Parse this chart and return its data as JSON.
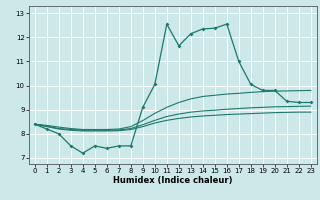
{
  "xlabel": "Humidex (Indice chaleur)",
  "bg_color": "#cce8e8",
  "grid_color": "#ffffff",
  "line_color": "#1a7a6e",
  "xlim": [
    -0.5,
    23.5
  ],
  "ylim": [
    6.75,
    13.3
  ],
  "xtick_vals": [
    0,
    1,
    2,
    3,
    4,
    5,
    6,
    7,
    8,
    9,
    10,
    11,
    12,
    13,
    14,
    15,
    16,
    17,
    18,
    19,
    20,
    21,
    22,
    23
  ],
  "ytick_vals": [
    7,
    8,
    9,
    10,
    11,
    12,
    13
  ],
  "series0": [
    8.4,
    8.2,
    8.0,
    7.5,
    7.2,
    7.5,
    7.4,
    7.5,
    7.5,
    9.1,
    10.05,
    12.55,
    11.65,
    12.15,
    12.35,
    12.38,
    12.55,
    11.0,
    10.05,
    9.8,
    9.8,
    9.35,
    9.3,
    9.3
  ],
  "series1": [
    8.4,
    8.35,
    8.28,
    8.22,
    8.18,
    8.18,
    8.18,
    8.2,
    8.3,
    8.55,
    8.85,
    9.1,
    9.3,
    9.45,
    9.55,
    9.6,
    9.65,
    9.68,
    9.72,
    9.75,
    9.77,
    9.78,
    9.79,
    9.8
  ],
  "series2": [
    8.4,
    8.32,
    8.22,
    8.18,
    8.15,
    8.15,
    8.15,
    8.16,
    8.22,
    8.38,
    8.56,
    8.72,
    8.82,
    8.9,
    8.95,
    8.98,
    9.02,
    9.05,
    9.08,
    9.1,
    9.12,
    9.13,
    9.14,
    9.15
  ],
  "series3": [
    8.4,
    8.3,
    8.2,
    8.15,
    8.12,
    8.12,
    8.12,
    8.13,
    8.18,
    8.3,
    8.45,
    8.56,
    8.64,
    8.7,
    8.74,
    8.77,
    8.8,
    8.82,
    8.84,
    8.86,
    8.88,
    8.89,
    8.9,
    8.9
  ]
}
